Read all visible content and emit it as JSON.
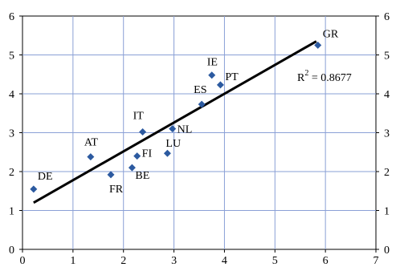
{
  "chart_data": {
    "type": "scatter",
    "title": "",
    "xlabel": "",
    "ylabel": "",
    "xlim": [
      0,
      7
    ],
    "ylim": [
      0,
      6
    ],
    "xticks": [
      0,
      1,
      2,
      3,
      4,
      5,
      6,
      7
    ],
    "yticks": [
      0,
      1,
      2,
      3,
      4,
      5,
      6
    ],
    "grid": true,
    "right_axis_labels": true,
    "marker": "diamond",
    "marker_color": "#2c5aa0",
    "grid_color": "#8aa0d6",
    "points": [
      {
        "label": "DE",
        "x": 0.22,
        "y": 1.55
      },
      {
        "label": "AT",
        "x": 1.35,
        "y": 2.38
      },
      {
        "label": "FR",
        "x": 1.75,
        "y": 1.92
      },
      {
        "label": "BE",
        "x": 2.17,
        "y": 2.1
      },
      {
        "label": "FI",
        "x": 2.27,
        "y": 2.4
      },
      {
        "label": "IT",
        "x": 2.38,
        "y": 3.02
      },
      {
        "label": "LU",
        "x": 2.87,
        "y": 2.47
      },
      {
        "label": "NL",
        "x": 2.97,
        "y": 3.1
      },
      {
        "label": "ES",
        "x": 3.55,
        "y": 3.73
      },
      {
        "label": "IE",
        "x": 3.75,
        "y": 4.48
      },
      {
        "label": "PT",
        "x": 3.92,
        "y": 4.23
      },
      {
        "label": "GR",
        "x": 5.85,
        "y": 5.25
      }
    ],
    "trendline": {
      "x": [
        0.22,
        5.82
      ],
      "y": [
        1.2,
        5.35
      ],
      "color": "#000000"
    },
    "annotation": {
      "text": "R",
      "sup": "2",
      "rest": " = 0.8677"
    }
  }
}
